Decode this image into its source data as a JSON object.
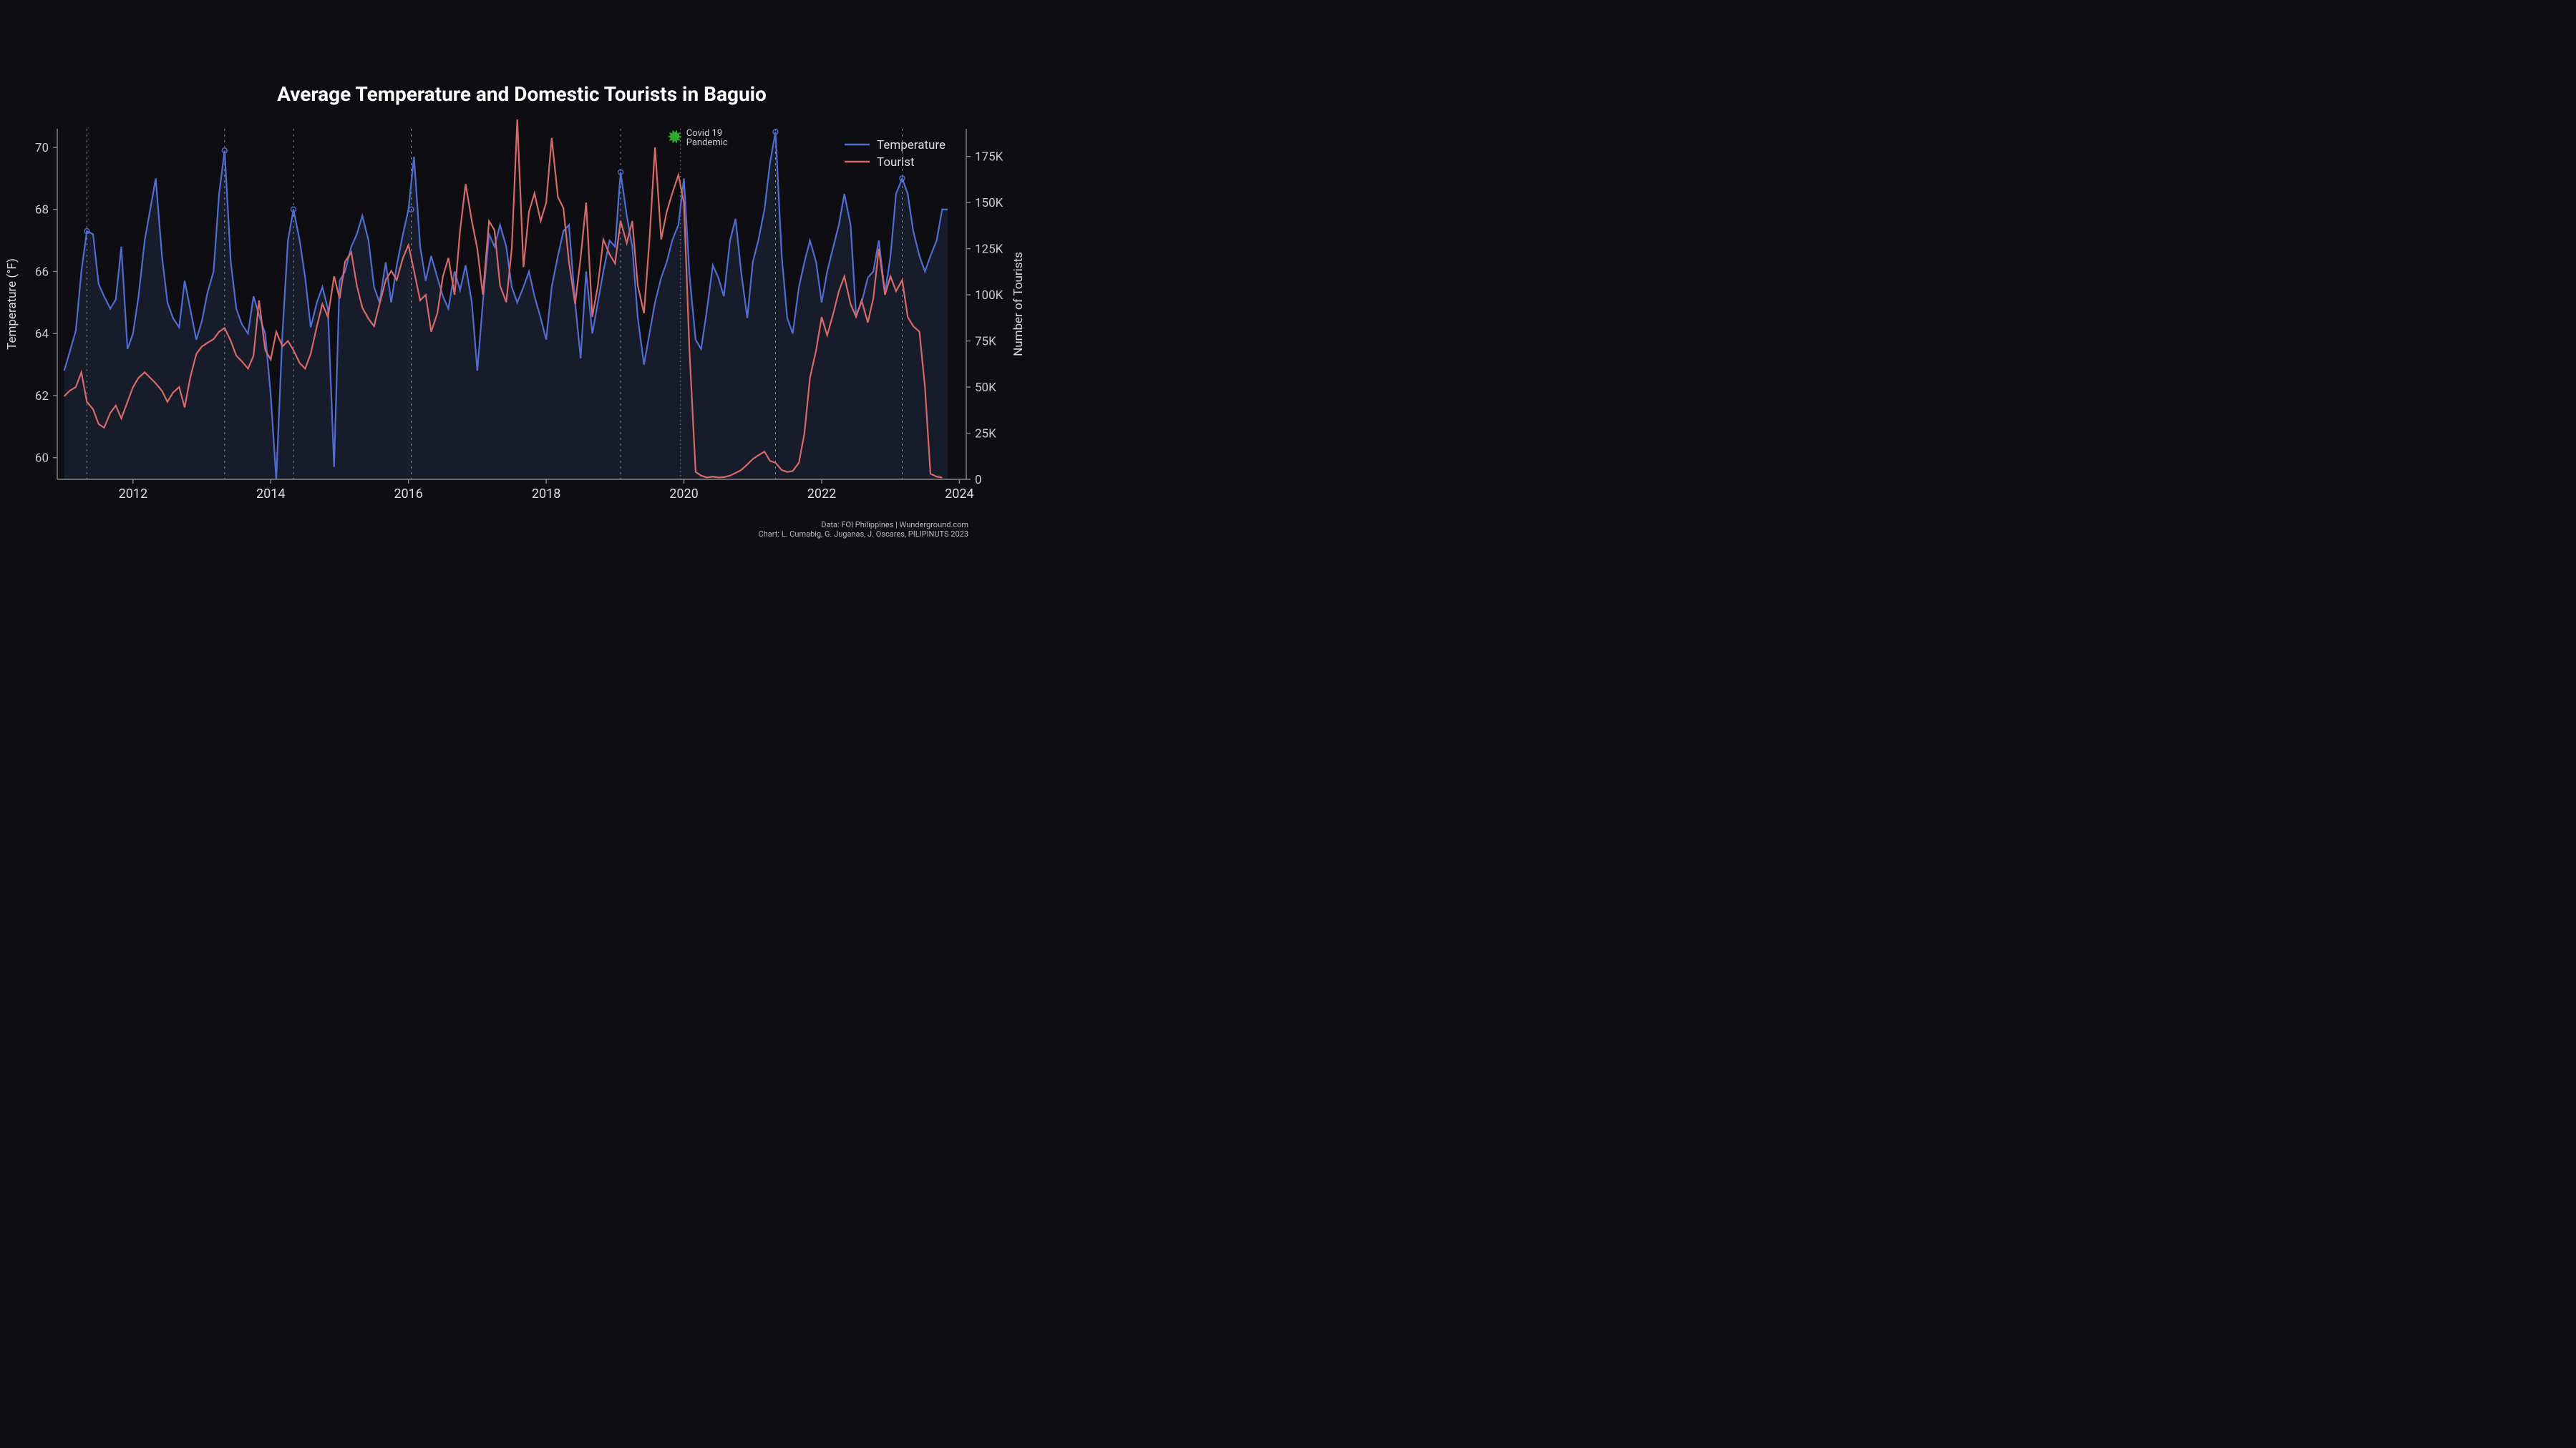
{
  "chart": {
    "type": "dual-axis-line",
    "title": "Average Temperature and Domestic Tourists in Baguio",
    "title_fontsize": 28,
    "background_color": "#0e0e12",
    "plot_background": "#0e0e12",
    "area_fill_color": "#2a3356",
    "axis_color": "#888888",
    "grid_color": "#888888",
    "series": {
      "temperature": {
        "label": "Temperature",
        "color": "#4f6cd0",
        "has_area_fill": true,
        "line_width": 2.2
      },
      "tourist": {
        "label": "Tourist",
        "color": "#d46a6a",
        "has_area_fill": false,
        "line_width": 2.0
      }
    },
    "x": {
      "domain_start": 2010.9,
      "domain_end": 2024.1,
      "ticks": [
        2012,
        2014,
        2016,
        2018,
        2020,
        2022,
        2024
      ]
    },
    "y_left": {
      "label": "Temperature (°F)",
      "lim": [
        59.3,
        70.6
      ],
      "ticks": [
        60,
        62,
        64,
        66,
        68,
        70
      ]
    },
    "y_right": {
      "label": "Number of Tourists",
      "lim": [
        0,
        190000
      ],
      "ticks": [
        0,
        25000,
        50000,
        75000,
        100000,
        125000,
        150000,
        175000
      ],
      "tick_format": "K"
    },
    "vertical_markers": [
      2011.33,
      2013.33,
      2014.33,
      2016.04,
      2019.08,
      2021.33,
      2023.17
    ],
    "annotation": {
      "x": 2019.95,
      "label_line1": "Covid 19",
      "label_line2": "Pandemic",
      "icon": "virus",
      "icon_color": "#2fa82f",
      "text_color": "#cccccc",
      "fontsize": 13
    },
    "legend": {
      "items": [
        "temperature",
        "tourist"
      ],
      "position": "top-right",
      "fontsize": 17
    },
    "credits": {
      "line1": "Data: FOI Philippines | Wunderground.com",
      "line2": "Chart: L. Cumabig, G. Juganas, J. Oscares, PILIPINUTS 2023"
    },
    "data_points": [
      {
        "t": 2011.0,
        "temp": 62.8,
        "tour": 45000
      },
      {
        "t": 2011.08,
        "temp": 63.4,
        "tour": 48000
      },
      {
        "t": 2011.17,
        "temp": 64.1,
        "tour": 50000
      },
      {
        "t": 2011.25,
        "temp": 66.0,
        "tour": 58000
      },
      {
        "t": 2011.33,
        "temp": 67.3,
        "tour": 42000
      },
      {
        "t": 2011.42,
        "temp": 67.2,
        "tour": 38000
      },
      {
        "t": 2011.5,
        "temp": 65.6,
        "tour": 30000
      },
      {
        "t": 2011.58,
        "temp": 65.2,
        "tour": 28000
      },
      {
        "t": 2011.67,
        "temp": 64.8,
        "tour": 36000
      },
      {
        "t": 2011.75,
        "temp": 65.1,
        "tour": 40000
      },
      {
        "t": 2011.83,
        "temp": 66.8,
        "tour": 33000
      },
      {
        "t": 2011.92,
        "temp": 63.5,
        "tour": 42000
      },
      {
        "t": 2012.0,
        "temp": 64.0,
        "tour": 50000
      },
      {
        "t": 2012.08,
        "temp": 65.2,
        "tour": 55000
      },
      {
        "t": 2012.17,
        "temp": 67.0,
        "tour": 58000
      },
      {
        "t": 2012.25,
        "temp": 68.0,
        "tour": 55000
      },
      {
        "t": 2012.33,
        "temp": 69.0,
        "tour": 52000
      },
      {
        "t": 2012.42,
        "temp": 66.5,
        "tour": 48000
      },
      {
        "t": 2012.5,
        "temp": 65.0,
        "tour": 42000
      },
      {
        "t": 2012.58,
        "temp": 64.5,
        "tour": 47000
      },
      {
        "t": 2012.67,
        "temp": 64.2,
        "tour": 50000
      },
      {
        "t": 2012.75,
        "temp": 65.7,
        "tour": 39000
      },
      {
        "t": 2012.83,
        "temp": 64.8,
        "tour": 55000
      },
      {
        "t": 2012.92,
        "temp": 63.8,
        "tour": 68000
      },
      {
        "t": 2013.0,
        "temp": 64.4,
        "tour": 72000
      },
      {
        "t": 2013.08,
        "temp": 65.3,
        "tour": 74000
      },
      {
        "t": 2013.17,
        "temp": 66.0,
        "tour": 76000
      },
      {
        "t": 2013.25,
        "temp": 68.5,
        "tour": 80000
      },
      {
        "t": 2013.33,
        "temp": 69.9,
        "tour": 82000
      },
      {
        "t": 2013.42,
        "temp": 66.3,
        "tour": 75000
      },
      {
        "t": 2013.5,
        "temp": 64.8,
        "tour": 67000
      },
      {
        "t": 2013.58,
        "temp": 64.3,
        "tour": 64000
      },
      {
        "t": 2013.67,
        "temp": 64.0,
        "tour": 60000
      },
      {
        "t": 2013.75,
        "temp": 65.2,
        "tour": 67000
      },
      {
        "t": 2013.83,
        "temp": 64.6,
        "tour": 97000
      },
      {
        "t": 2013.92,
        "temp": 64.0,
        "tour": 70000
      },
      {
        "t": 2014.0,
        "temp": 62.0,
        "tour": 65000
      },
      {
        "t": 2014.08,
        "temp": 59.3,
        "tour": 80000
      },
      {
        "t": 2014.17,
        "temp": 64.0,
        "tour": 72000
      },
      {
        "t": 2014.25,
        "temp": 67.0,
        "tour": 75000
      },
      {
        "t": 2014.33,
        "temp": 68.0,
        "tour": 70000
      },
      {
        "t": 2014.42,
        "temp": 67.0,
        "tour": 63000
      },
      {
        "t": 2014.5,
        "temp": 65.8,
        "tour": 60000
      },
      {
        "t": 2014.58,
        "temp": 64.2,
        "tour": 68000
      },
      {
        "t": 2014.67,
        "temp": 65.0,
        "tour": 83000
      },
      {
        "t": 2014.75,
        "temp": 65.5,
        "tour": 95000
      },
      {
        "t": 2014.83,
        "temp": 64.8,
        "tour": 88000
      },
      {
        "t": 2014.92,
        "temp": 59.7,
        "tour": 110000
      },
      {
        "t": 2015.0,
        "temp": 65.7,
        "tour": 98000
      },
      {
        "t": 2015.08,
        "temp": 66.0,
        "tour": 118000
      },
      {
        "t": 2015.17,
        "temp": 66.8,
        "tour": 123000
      },
      {
        "t": 2015.25,
        "temp": 67.2,
        "tour": 105000
      },
      {
        "t": 2015.33,
        "temp": 67.8,
        "tour": 93000
      },
      {
        "t": 2015.42,
        "temp": 67.0,
        "tour": 87000
      },
      {
        "t": 2015.5,
        "temp": 65.5,
        "tour": 83000
      },
      {
        "t": 2015.58,
        "temp": 65.0,
        "tour": 95000
      },
      {
        "t": 2015.67,
        "temp": 66.3,
        "tour": 108000
      },
      {
        "t": 2015.75,
        "temp": 65.0,
        "tour": 113000
      },
      {
        "t": 2015.83,
        "temp": 66.2,
        "tour": 108000
      },
      {
        "t": 2015.92,
        "temp": 67.2,
        "tour": 120000
      },
      {
        "t": 2016.0,
        "temp": 68.0,
        "tour": 127000
      },
      {
        "t": 2016.08,
        "temp": 69.7,
        "tour": 113000
      },
      {
        "t": 2016.17,
        "temp": 66.8,
        "tour": 97000
      },
      {
        "t": 2016.25,
        "temp": 65.7,
        "tour": 100000
      },
      {
        "t": 2016.33,
        "temp": 66.5,
        "tour": 80000
      },
      {
        "t": 2016.42,
        "temp": 65.8,
        "tour": 90000
      },
      {
        "t": 2016.5,
        "temp": 65.2,
        "tour": 110000
      },
      {
        "t": 2016.58,
        "temp": 64.8,
        "tour": 120000
      },
      {
        "t": 2016.67,
        "temp": 66.0,
        "tour": 100000
      },
      {
        "t": 2016.75,
        "temp": 65.4,
        "tour": 135000
      },
      {
        "t": 2016.83,
        "temp": 66.2,
        "tour": 160000
      },
      {
        "t": 2016.92,
        "temp": 65.0,
        "tour": 140000
      },
      {
        "t": 2017.0,
        "temp": 62.8,
        "tour": 125000
      },
      {
        "t": 2017.08,
        "temp": 65.0,
        "tour": 100000
      },
      {
        "t": 2017.17,
        "temp": 67.2,
        "tour": 140000
      },
      {
        "t": 2017.25,
        "temp": 66.8,
        "tour": 135000
      },
      {
        "t": 2017.33,
        "temp": 67.5,
        "tour": 105000
      },
      {
        "t": 2017.42,
        "temp": 66.8,
        "tour": 96000
      },
      {
        "t": 2017.5,
        "temp": 65.5,
        "tour": 125000
      },
      {
        "t": 2017.58,
        "temp": 65.0,
        "tour": 195000
      },
      {
        "t": 2017.67,
        "temp": 65.5,
        "tour": 115000
      },
      {
        "t": 2017.75,
        "temp": 66.0,
        "tour": 145000
      },
      {
        "t": 2017.83,
        "temp": 65.2,
        "tour": 155000
      },
      {
        "t": 2017.92,
        "temp": 64.5,
        "tour": 140000
      },
      {
        "t": 2018.0,
        "temp": 63.8,
        "tour": 150000
      },
      {
        "t": 2018.08,
        "temp": 65.5,
        "tour": 185000
      },
      {
        "t": 2018.17,
        "temp": 66.5,
        "tour": 153000
      },
      {
        "t": 2018.25,
        "temp": 67.3,
        "tour": 147000
      },
      {
        "t": 2018.33,
        "temp": 67.5,
        "tour": 118000
      },
      {
        "t": 2018.42,
        "temp": 65.0,
        "tour": 95000
      },
      {
        "t": 2018.5,
        "temp": 63.2,
        "tour": 120000
      },
      {
        "t": 2018.58,
        "temp": 66.0,
        "tour": 150000
      },
      {
        "t": 2018.67,
        "temp": 64.0,
        "tour": 88000
      },
      {
        "t": 2018.75,
        "temp": 65.0,
        "tour": 105000
      },
      {
        "t": 2018.83,
        "temp": 66.0,
        "tour": 130000
      },
      {
        "t": 2018.92,
        "temp": 67.0,
        "tour": 122000
      },
      {
        "t": 2019.0,
        "temp": 66.8,
        "tour": 117000
      },
      {
        "t": 2019.08,
        "temp": 69.2,
        "tour": 140000
      },
      {
        "t": 2019.17,
        "temp": 67.8,
        "tour": 128000
      },
      {
        "t": 2019.25,
        "temp": 66.8,
        "tour": 140000
      },
      {
        "t": 2019.33,
        "temp": 64.5,
        "tour": 105000
      },
      {
        "t": 2019.42,
        "temp": 63.0,
        "tour": 90000
      },
      {
        "t": 2019.5,
        "temp": 64.0,
        "tour": 130000
      },
      {
        "t": 2019.58,
        "temp": 65.0,
        "tour": 180000
      },
      {
        "t": 2019.67,
        "temp": 65.8,
        "tour": 130000
      },
      {
        "t": 2019.75,
        "temp": 66.3,
        "tour": 145000
      },
      {
        "t": 2019.83,
        "temp": 67.0,
        "tour": 155000
      },
      {
        "t": 2019.92,
        "temp": 67.5,
        "tour": 165000
      },
      {
        "t": 2020.0,
        "temp": 69.0,
        "tour": 150000
      },
      {
        "t": 2020.08,
        "temp": 65.9,
        "tour": 70000
      },
      {
        "t": 2020.17,
        "temp": 63.8,
        "tour": 4000
      },
      {
        "t": 2020.25,
        "temp": 63.5,
        "tour": 2000
      },
      {
        "t": 2020.33,
        "temp": 64.7,
        "tour": 1000
      },
      {
        "t": 2020.42,
        "temp": 66.2,
        "tour": 1500
      },
      {
        "t": 2020.5,
        "temp": 65.8,
        "tour": 1000
      },
      {
        "t": 2020.58,
        "temp": 65.2,
        "tour": 1200
      },
      {
        "t": 2020.67,
        "temp": 67.0,
        "tour": 2000
      },
      {
        "t": 2020.75,
        "temp": 67.7,
        "tour": 3500
      },
      {
        "t": 2020.83,
        "temp": 66.0,
        "tour": 5000
      },
      {
        "t": 2020.92,
        "temp": 64.5,
        "tour": 8000
      },
      {
        "t": 2021.0,
        "temp": 66.3,
        "tour": 11000
      },
      {
        "t": 2021.08,
        "temp": 67.0,
        "tour": 13000
      },
      {
        "t": 2021.17,
        "temp": 68.0,
        "tour": 15000
      },
      {
        "t": 2021.25,
        "temp": 69.5,
        "tour": 10000
      },
      {
        "t": 2021.33,
        "temp": 70.5,
        "tour": 9000
      },
      {
        "t": 2021.42,
        "temp": 66.5,
        "tour": 5000
      },
      {
        "t": 2021.5,
        "temp": 64.5,
        "tour": 4000
      },
      {
        "t": 2021.58,
        "temp": 64.0,
        "tour": 4500
      },
      {
        "t": 2021.67,
        "temp": 65.5,
        "tour": 9000
      },
      {
        "t": 2021.75,
        "temp": 66.3,
        "tour": 25000
      },
      {
        "t": 2021.83,
        "temp": 67.0,
        "tour": 55000
      },
      {
        "t": 2021.92,
        "temp": 66.3,
        "tour": 70000
      },
      {
        "t": 2022.0,
        "temp": 65.0,
        "tour": 88000
      },
      {
        "t": 2022.08,
        "temp": 66.0,
        "tour": 78000
      },
      {
        "t": 2022.17,
        "temp": 66.8,
        "tour": 90000
      },
      {
        "t": 2022.25,
        "temp": 67.5,
        "tour": 102000
      },
      {
        "t": 2022.33,
        "temp": 68.5,
        "tour": 110000
      },
      {
        "t": 2022.42,
        "temp": 67.5,
        "tour": 95000
      },
      {
        "t": 2022.5,
        "temp": 64.6,
        "tour": 88000
      },
      {
        "t": 2022.58,
        "temp": 65.0,
        "tour": 97000
      },
      {
        "t": 2022.67,
        "temp": 65.8,
        "tour": 85000
      },
      {
        "t": 2022.75,
        "temp": 66.0,
        "tour": 98000
      },
      {
        "t": 2022.83,
        "temp": 67.0,
        "tour": 125000
      },
      {
        "t": 2022.92,
        "temp": 65.3,
        "tour": 100000
      },
      {
        "t": 2023.0,
        "temp": 66.5,
        "tour": 110000
      },
      {
        "t": 2023.08,
        "temp": 68.5,
        "tour": 102000
      },
      {
        "t": 2023.17,
        "temp": 69.0,
        "tour": 108000
      },
      {
        "t": 2023.25,
        "temp": 68.5,
        "tour": 88000
      },
      {
        "t": 2023.33,
        "temp": 67.3,
        "tour": 83000
      },
      {
        "t": 2023.42,
        "temp": 66.5,
        "tour": 80000
      },
      {
        "t": 2023.5,
        "temp": 66.0,
        "tour": 50000
      },
      {
        "t": 2023.58,
        "temp": 66.5,
        "tour": 3000
      },
      {
        "t": 2023.67,
        "temp": 67.0,
        "tour": 1500
      },
      {
        "t": 2023.75,
        "temp": 68.0,
        "tour": 1000
      },
      {
        "t": 2023.83,
        "temp": 68.0,
        "tour": null
      }
    ]
  }
}
